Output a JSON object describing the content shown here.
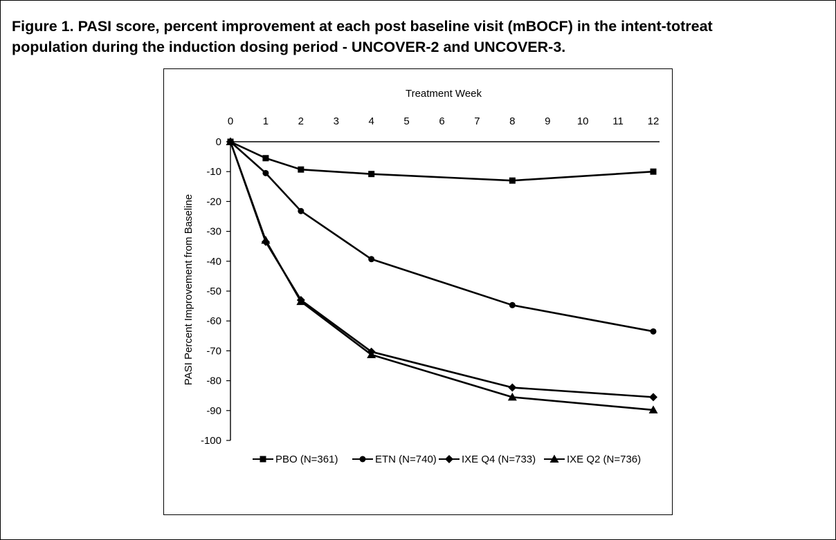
{
  "figure": {
    "title": "Figure 1. PASI score, percent improvement at each post baseline visit (mBOCF) in the intent-totreat\npopulation during the induction dosing period - UNCOVER-2 and UNCOVER-3."
  },
  "chart_data": {
    "type": "line",
    "xlabel": "Treatment Week",
    "ylabel": "PASI Percent Improvement from Baseline",
    "x_ticks": [
      0,
      1,
      2,
      3,
      4,
      5,
      6,
      7,
      8,
      9,
      10,
      11,
      12
    ],
    "y_ticks": [
      0,
      -10,
      -20,
      -30,
      -40,
      -50,
      -60,
      -70,
      -80,
      -90,
      -100
    ],
    "xlim": [
      0,
      12
    ],
    "ylim": [
      -100,
      0
    ],
    "x_axis_position": "top",
    "grid": false,
    "legend_position": "bottom",
    "series": [
      {
        "name": "PBO (N=361)",
        "marker": "square",
        "x": [
          0,
          1,
          2,
          4,
          8,
          12
        ],
        "y": [
          0,
          -5.5,
          -9.3,
          -10.8,
          -13,
          -10
        ]
      },
      {
        "name": "ETN (N=740)",
        "marker": "circle",
        "x": [
          0,
          1,
          2,
          4,
          8,
          12
        ],
        "y": [
          0,
          -10.5,
          -23.2,
          -39.3,
          -54.7,
          -63.5
        ]
      },
      {
        "name": "IXE Q4 (N=733)",
        "marker": "diamond",
        "x": [
          0,
          1,
          2,
          4,
          8,
          12
        ],
        "y": [
          0,
          -33.5,
          -53,
          -70.3,
          -82.3,
          -85.5
        ]
      },
      {
        "name": "IXE Q2 (N=736)",
        "marker": "triangle",
        "x": [
          0,
          1,
          2,
          4,
          8,
          12
        ],
        "y": [
          0,
          -33,
          -53.5,
          -71.3,
          -85.5,
          -89.8
        ]
      }
    ]
  }
}
